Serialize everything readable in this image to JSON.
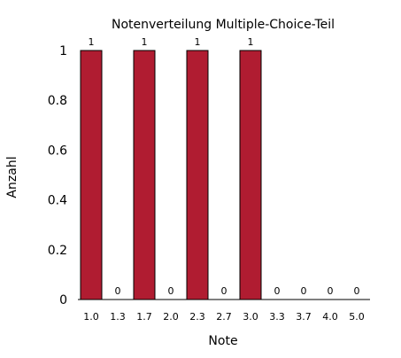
{
  "chart_data": {
    "type": "bar",
    "title": "Notenverteilung Multiple-Choice-Teil",
    "xlabel": "Note",
    "ylabel": "Anzahl",
    "categories": [
      "1.0",
      "1.3",
      "1.7",
      "2.0",
      "2.3",
      "2.7",
      "3.0",
      "3.3",
      "3.7",
      "4.0",
      "5.0"
    ],
    "values": [
      1,
      0,
      1,
      0,
      1,
      0,
      1,
      0,
      0,
      0,
      0
    ],
    "data_labels": [
      "1",
      "0",
      "1",
      "0",
      "1",
      "0",
      "1",
      "0",
      "0",
      "0",
      "0"
    ],
    "ylim": [
      0,
      1
    ],
    "yticks": [
      "0",
      "0.2",
      "0.4",
      "0.6",
      "0.8",
      "1"
    ],
    "ytick_values": [
      0,
      0.2,
      0.4,
      0.6,
      0.8,
      1
    ],
    "grid": false,
    "legend": "none",
    "bar_color": "#b01c31",
    "bar_edge_color": "#000000"
  }
}
